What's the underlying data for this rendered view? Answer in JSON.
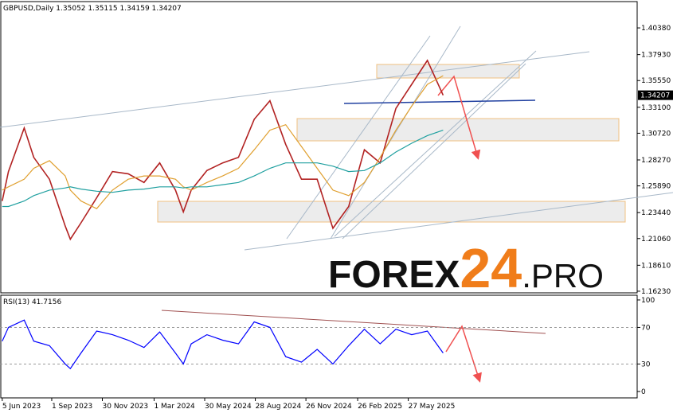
{
  "chart_data": [
    {
      "type": "line",
      "title": "GBPUSD,Daily  1.35052 1.35115 1.34159 1.34207",
      "x": [
        "2023-06-05",
        "2023-06-16",
        "2023-07-14",
        "2023-07-31",
        "2023-08-28",
        "2023-09-25",
        "2023-10-04",
        "2023-10-23",
        "2023-11-20",
        "2023-12-18",
        "2024-01-15",
        "2024-02-12",
        "2024-03-11",
        "2024-04-08",
        "2024-04-22",
        "2024-05-06",
        "2024-06-03",
        "2024-07-01",
        "2024-07-29",
        "2024-08-26",
        "2024-09-23",
        "2024-10-21",
        "2024-11-18",
        "2024-12-16",
        "2025-01-13",
        "2025-02-10",
        "2025-03-10",
        "2025-04-07",
        "2025-05-05",
        "2025-06-02",
        "2025-06-30",
        "2025-07-28"
      ],
      "series": [
        {
          "color": "#b22222",
          "values": [
            1.245,
            1.272,
            1.312,
            1.285,
            1.265,
            1.222,
            1.21,
            1.225,
            1.248,
            1.272,
            1.27,
            1.262,
            1.28,
            1.255,
            1.235,
            1.255,
            1.273,
            1.28,
            1.285,
            1.32,
            1.337,
            1.297,
            1.265,
            1.265,
            1.22,
            1.24,
            1.292,
            1.28,
            1.33,
            1.352,
            1.374,
            1.342
          ]
        },
        {
          "color": "#e0a030",
          "values": [
            1.255,
            1.258,
            1.265,
            1.275,
            1.282,
            1.268,
            1.255,
            1.245,
            1.238,
            1.255,
            1.265,
            1.268,
            1.268,
            1.265,
            1.258,
            1.255,
            1.262,
            1.268,
            1.275,
            1.292,
            1.31,
            1.315,
            1.295,
            1.275,
            1.255,
            1.25,
            1.262,
            1.285,
            1.31,
            1.332,
            1.352,
            1.36
          ]
        },
        {
          "color": "#20a0a0",
          "values": [
            1.24,
            1.24,
            1.245,
            1.25,
            1.255,
            1.257,
            1.258,
            1.256,
            1.254,
            1.253,
            1.255,
            1.256,
            1.258,
            1.258,
            1.257,
            1.258,
            1.258,
            1.26,
            1.262,
            1.268,
            1.275,
            1.28,
            1.28,
            1.28,
            1.277,
            1.272,
            1.273,
            1.28,
            1.29,
            1.298,
            1.305,
            1.31
          ]
        }
      ],
      "last_price": {
        "value": 1.34207,
        "label": "1.34207"
      },
      "xlim": [
        "2023-06-01",
        "2026-07-08"
      ],
      "ylim": [
        1.1608,
        1.4272
      ],
      "yticks": [
        {
          "value": 1.4038,
          "label": "1.40380"
        },
        {
          "value": 1.3793,
          "label": "1.37930"
        },
        {
          "value": 1.3555,
          "label": "1.35550"
        },
        {
          "value": 1.331,
          "label": "1.33100"
        },
        {
          "value": 1.3072,
          "label": "1.30720"
        },
        {
          "value": 1.2827,
          "label": "1.28270"
        },
        {
          "value": 1.2589,
          "label": "1.25890"
        },
        {
          "value": 1.2344,
          "label": "1.23440"
        },
        {
          "value": 1.2106,
          "label": "1.21060"
        },
        {
          "value": 1.1861,
          "label": "1.18610"
        },
        {
          "value": 1.1623,
          "label": "1.16230"
        }
      ],
      "watermark": [
        "FOREX",
        "24",
        ".PRO"
      ]
    },
    {
      "type": "line",
      "title": "RSI(13) 41.7156",
      "x": [
        "2023-06-05",
        "2023-06-16",
        "2023-07-14",
        "2023-07-31",
        "2023-08-28",
        "2023-09-25",
        "2023-10-04",
        "2023-10-23",
        "2023-11-20",
        "2023-12-18",
        "2024-01-15",
        "2024-02-12",
        "2024-03-11",
        "2024-04-08",
        "2024-04-22",
        "2024-05-06",
        "2024-06-03",
        "2024-07-01",
        "2024-07-29",
        "2024-08-26",
        "2024-09-23",
        "2024-10-21",
        "2024-11-18",
        "2024-12-16",
        "2025-01-13",
        "2025-02-10",
        "2025-03-10",
        "2025-04-07",
        "2025-05-05",
        "2025-06-02",
        "2025-06-30",
        "2025-07-28"
      ],
      "series": [
        {
          "color": "#0000ff",
          "values": [
            55,
            70,
            78,
            55,
            50,
            30,
            25,
            42,
            66,
            62,
            56,
            48,
            65,
            42,
            30,
            52,
            62,
            56,
            52,
            76,
            70,
            38,
            32,
            46,
            30,
            50,
            68,
            52,
            68,
            62,
            66,
            42
          ]
        }
      ],
      "xlim": [
        "2023-06-01",
        "2026-07-08"
      ],
      "ylim": [
        -7,
        104.3
      ],
      "yticks": [
        100,
        70,
        30,
        0
      ],
      "grid_levels": [
        70,
        30
      ],
      "xticks": [
        {
          "value": "2023-06-05",
          "label": "5 Jun 2023"
        },
        {
          "value": "2023-09-01",
          "label": "1 Sep 2023"
        },
        {
          "value": "2023-11-30",
          "label": "30 Nov 2023"
        },
        {
          "value": "2024-03-01",
          "label": "1 Mar 2024"
        },
        {
          "value": "2024-05-30",
          "label": "30 May 2024"
        },
        {
          "value": "2024-08-28",
          "label": "28 Aug 2024"
        },
        {
          "value": "2024-11-26",
          "label": "26 Nov 2024"
        },
        {
          "value": "2025-02-26",
          "label": "26 Feb 2025"
        },
        {
          "value": "2025-05-27",
          "label": "27 May 2025"
        }
      ]
    }
  ]
}
